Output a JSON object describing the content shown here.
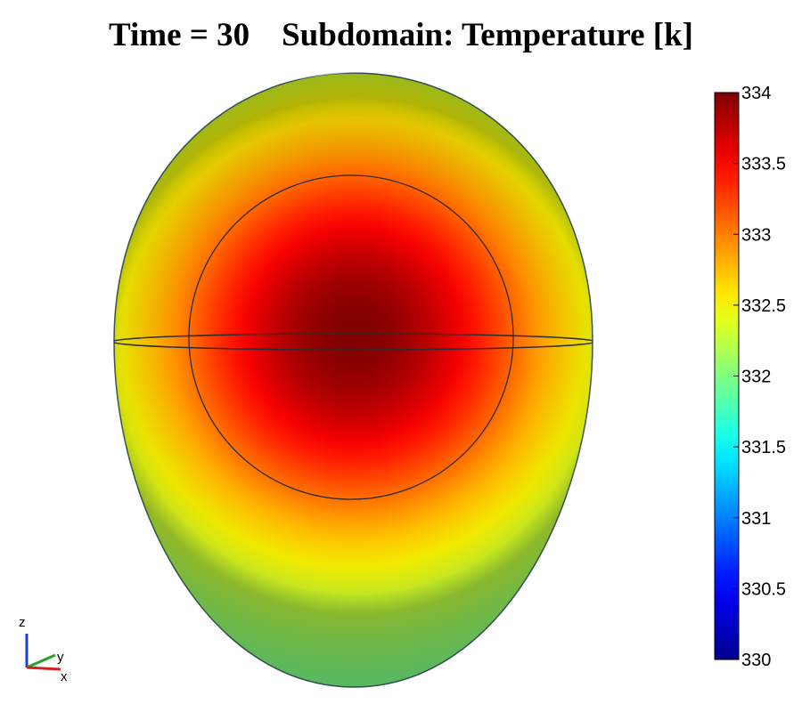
{
  "chart_data": {
    "type": "heatmap",
    "title_time": "Time = 30",
    "title_subdomain": "Subdomain: Temperature [k]",
    "colorbar": {
      "min": 330,
      "max": 334,
      "ticks": [
        330,
        330.5,
        331,
        331.5,
        332,
        332.5,
        333,
        333.5,
        334
      ],
      "tick_labels": [
        "330",
        "330.5",
        "331",
        "331.5",
        "332",
        "332.5",
        "333",
        "333.5",
        "334"
      ],
      "colormap": "jet"
    },
    "field": {
      "peak_value": 334,
      "edge_value": 331.8
    },
    "axes_triad": {
      "z": "z",
      "y": "y",
      "x": "x"
    }
  },
  "colors": {
    "jet_stops": [
      "#00008f",
      "#0000ff",
      "#00ffff",
      "#ffff00",
      "#ff0000",
      "#800000"
    ],
    "x_axis": "#d62020",
    "y_axis": "#2aa02a",
    "z_axis": "#1f3fd6"
  }
}
